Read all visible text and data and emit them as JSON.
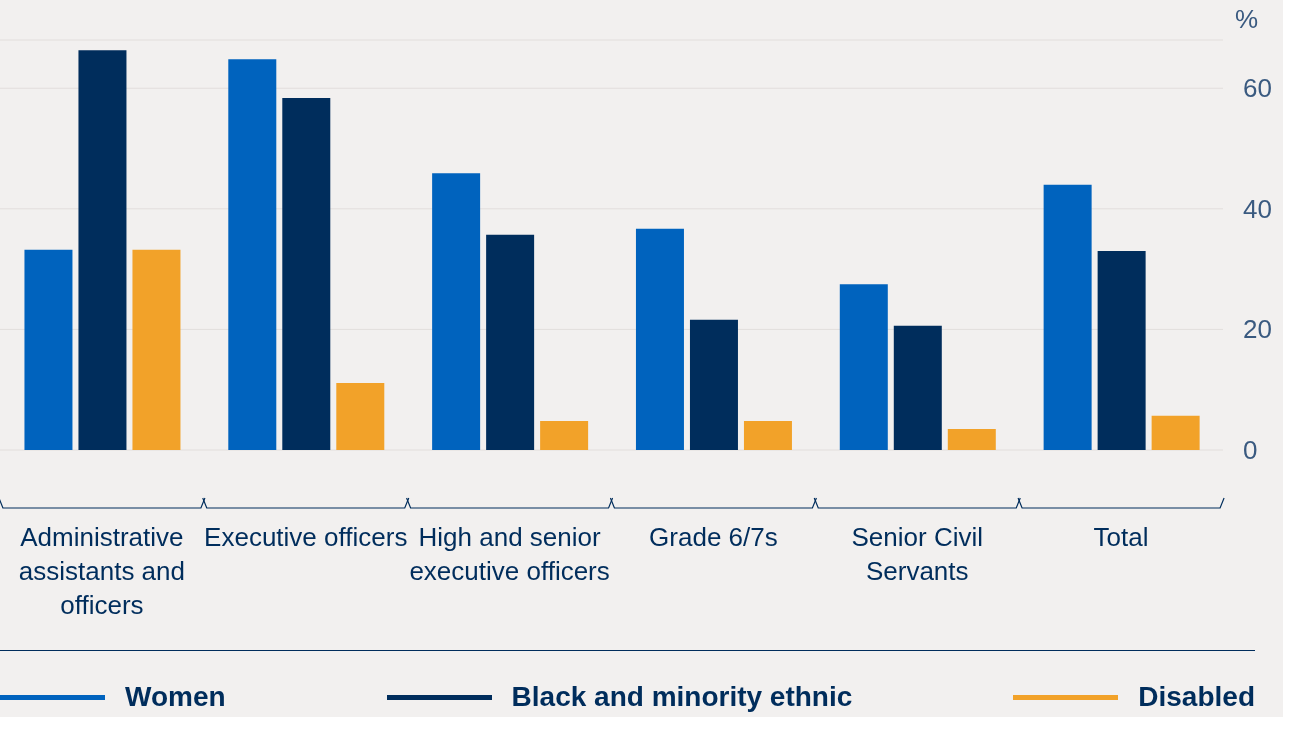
{
  "chart_data": {
    "type": "bar",
    "ylabel": "%",
    "categories": [
      "Administrative assistants and officers",
      "Executive officers",
      "High and senior executive officers",
      "Grade 6/7s",
      "Senior Civil Servants",
      "Total"
    ],
    "series": [
      {
        "name": "Women",
        "color": "#0063be",
        "values": [
          33.2,
          64.8,
          45.9,
          36.7,
          27.5,
          44
        ]
      },
      {
        "name": "Black and minority ethnic",
        "color": "#002d5c",
        "values": [
          66.3,
          58.4,
          35.7,
          21.6,
          20.6,
          33
        ]
      },
      {
        "name": "Disabled",
        "color": "#f2a229",
        "values": [
          33.2,
          11.1,
          4.8,
          4.8,
          3.5,
          5.7
        ]
      }
    ],
    "ylim": [
      0,
      68
    ],
    "yticks": [
      0,
      20,
      40,
      60
    ],
    "grid": "y",
    "legend": "bottom"
  }
}
